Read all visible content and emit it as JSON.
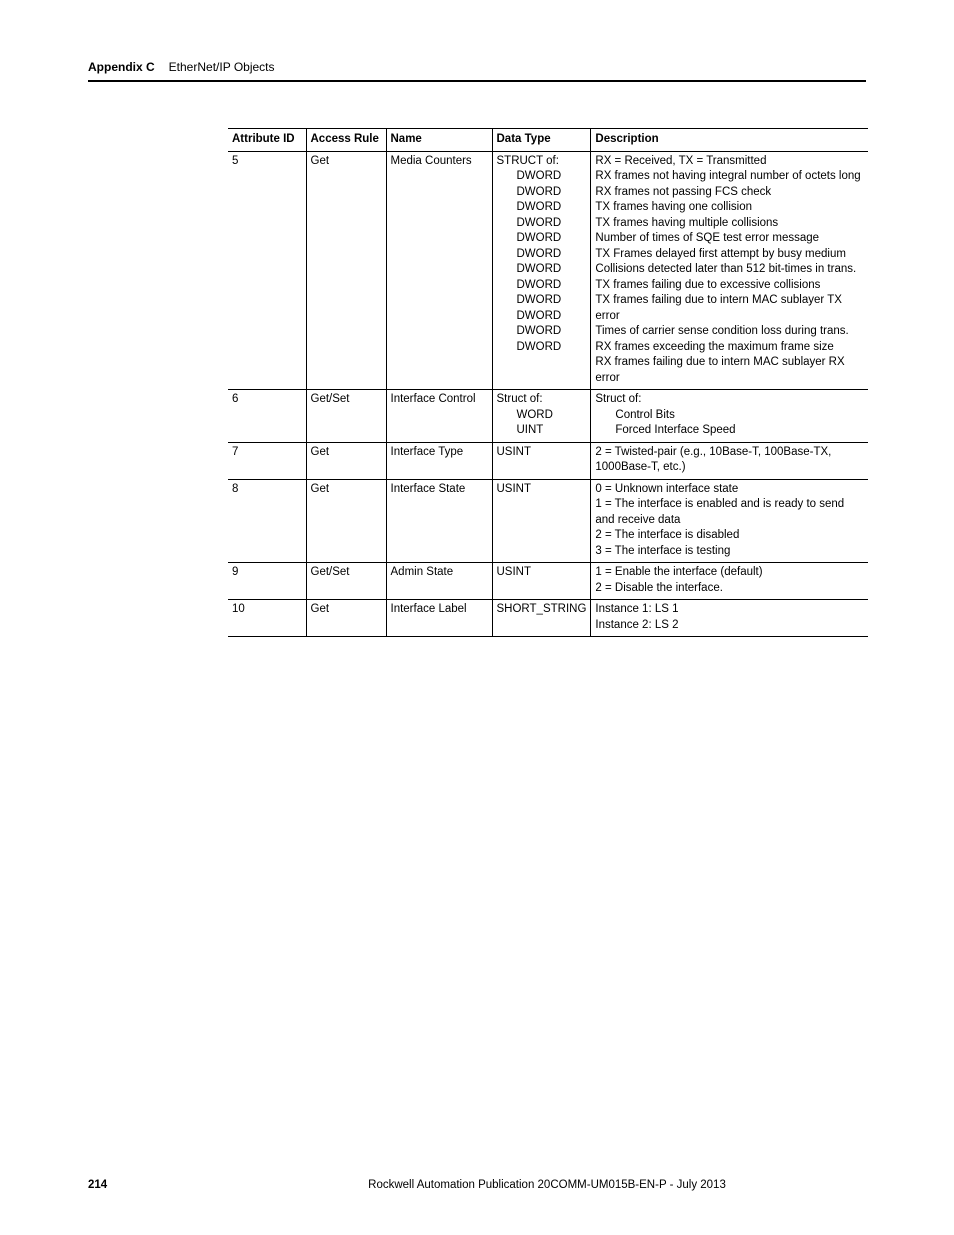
{
  "header": {
    "appendix_label": "Appendix C",
    "appendix_title": "EtherNet/IP Objects"
  },
  "table": {
    "columns": [
      "Attribute ID",
      "Access Rule",
      "Name",
      "Data Type",
      "Description"
    ],
    "rows": [
      {
        "id": "5",
        "rule": "Get",
        "name": "Media Counters",
        "types": [
          "STRUCT of:",
          "DWORD",
          "DWORD",
          "DWORD",
          "DWORD",
          "DWORD",
          "DWORD",
          "DWORD",
          "DWORD",
          "DWORD",
          "DWORD",
          "DWORD",
          "DWORD"
        ],
        "type_indent": [
          0,
          1,
          1,
          1,
          1,
          1,
          1,
          1,
          1,
          1,
          1,
          1,
          1
        ],
        "desc": [
          "RX = Received, TX = Transmitted",
          "RX frames not having integral number of octets long",
          "RX frames not passing FCS check",
          "TX frames having one collision",
          "TX frames having multiple collisions",
          "Number of times of SQE test error message",
          "TX Frames delayed first attempt by busy medium",
          "Collisions detected later than 512 bit-times in trans.",
          "TX frames failing due to excessive collisions",
          "TX frames failing due to intern MAC sublayer TX error",
          "Times of carrier sense condition loss during trans.",
          "RX frames exceeding the maximum frame size",
          "RX frames failing due to intern MAC sublayer RX error"
        ],
        "desc_indent": [
          0,
          0,
          0,
          0,
          0,
          0,
          0,
          0,
          0,
          0,
          0,
          0,
          0
        ]
      },
      {
        "id": "6",
        "rule": "Get/Set",
        "name": "Interface Control",
        "types": [
          "Struct of:",
          "WORD",
          "UINT"
        ],
        "type_indent": [
          0,
          1,
          1
        ],
        "desc": [
          "Struct of:",
          "Control Bits",
          "Forced Interface  Speed"
        ],
        "desc_indent": [
          0,
          1,
          1
        ]
      },
      {
        "id": "7",
        "rule": "Get",
        "name": "Interface Type",
        "types": [
          "USINT"
        ],
        "type_indent": [
          0
        ],
        "desc": [
          "2 = Twisted-pair (e.g., 10Base-T, 100Base-TX, 1000Base-T, etc.)"
        ],
        "desc_indent": [
          0
        ]
      },
      {
        "id": "8",
        "rule": "Get",
        "name": "Interface State",
        "types": [
          "USINT"
        ],
        "type_indent": [
          0
        ],
        "desc": [
          "0 = Unknown interface state",
          "1 = The interface is enabled and is ready to send and receive data",
          "2 = The interface is disabled",
          "3 = The interface is testing"
        ],
        "desc_indent": [
          0,
          0,
          0,
          0
        ]
      },
      {
        "id": "9",
        "rule": "Get/Set",
        "name": "Admin State",
        "types": [
          "USINT"
        ],
        "type_indent": [
          0
        ],
        "desc": [
          "1 = Enable the interface (default)",
          "2 = Disable the interface."
        ],
        "desc_indent": [
          0,
          0
        ]
      },
      {
        "id": "10",
        "rule": "Get",
        "name": "Interface Label",
        "types": [
          "SHORT_STRING"
        ],
        "type_indent": [
          0
        ],
        "desc": [
          "Instance 1: LS 1",
          "Instance 2: LS 2"
        ],
        "desc_indent": [
          0,
          0
        ]
      }
    ]
  },
  "footer": {
    "page_number": "214",
    "publication": "Rockwell Automation Publication  20COMM-UM015B-EN-P - July 2013"
  }
}
